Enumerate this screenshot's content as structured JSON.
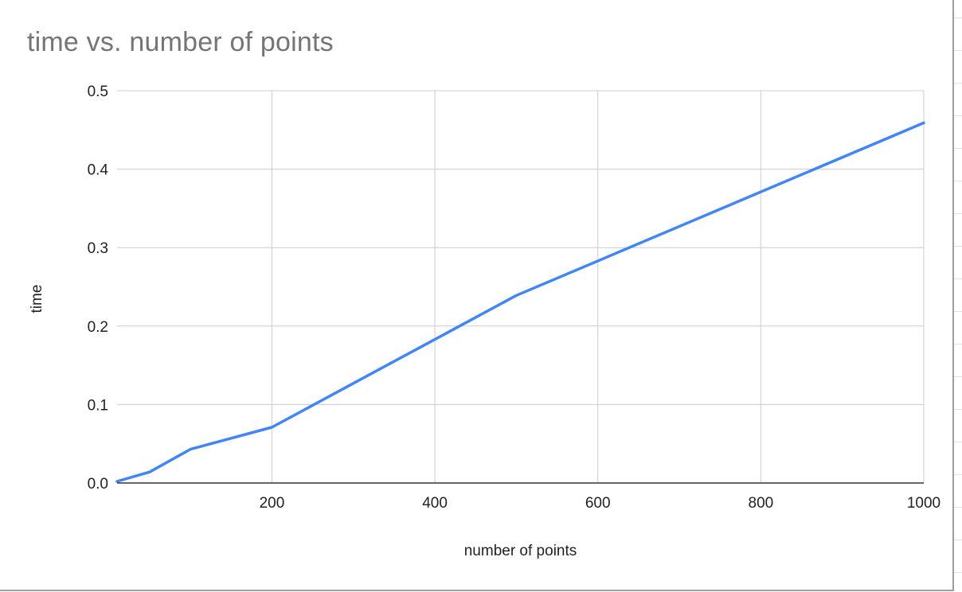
{
  "chart_data": {
    "type": "line",
    "title": "time vs. number of points",
    "xlabel": "number of points",
    "ylabel": "time",
    "xlim": [
      10,
      1000
    ],
    "ylim": [
      0,
      0.5
    ],
    "x_ticks": [
      200,
      400,
      600,
      800,
      1000
    ],
    "y_ticks": [
      "0.0",
      "0.1",
      "0.2",
      "0.3",
      "0.4",
      "0.5"
    ],
    "grid": true,
    "legend": "none",
    "series": [
      {
        "color": "#4285f4",
        "points": [
          {
            "x": 10,
            "y": 0.002
          },
          {
            "x": 50,
            "y": 0.014
          },
          {
            "x": 100,
            "y": 0.043
          },
          {
            "x": 200,
            "y": 0.071
          },
          {
            "x": 500,
            "y": 0.239
          },
          {
            "x": 1000,
            "y": 0.459
          }
        ]
      }
    ]
  }
}
